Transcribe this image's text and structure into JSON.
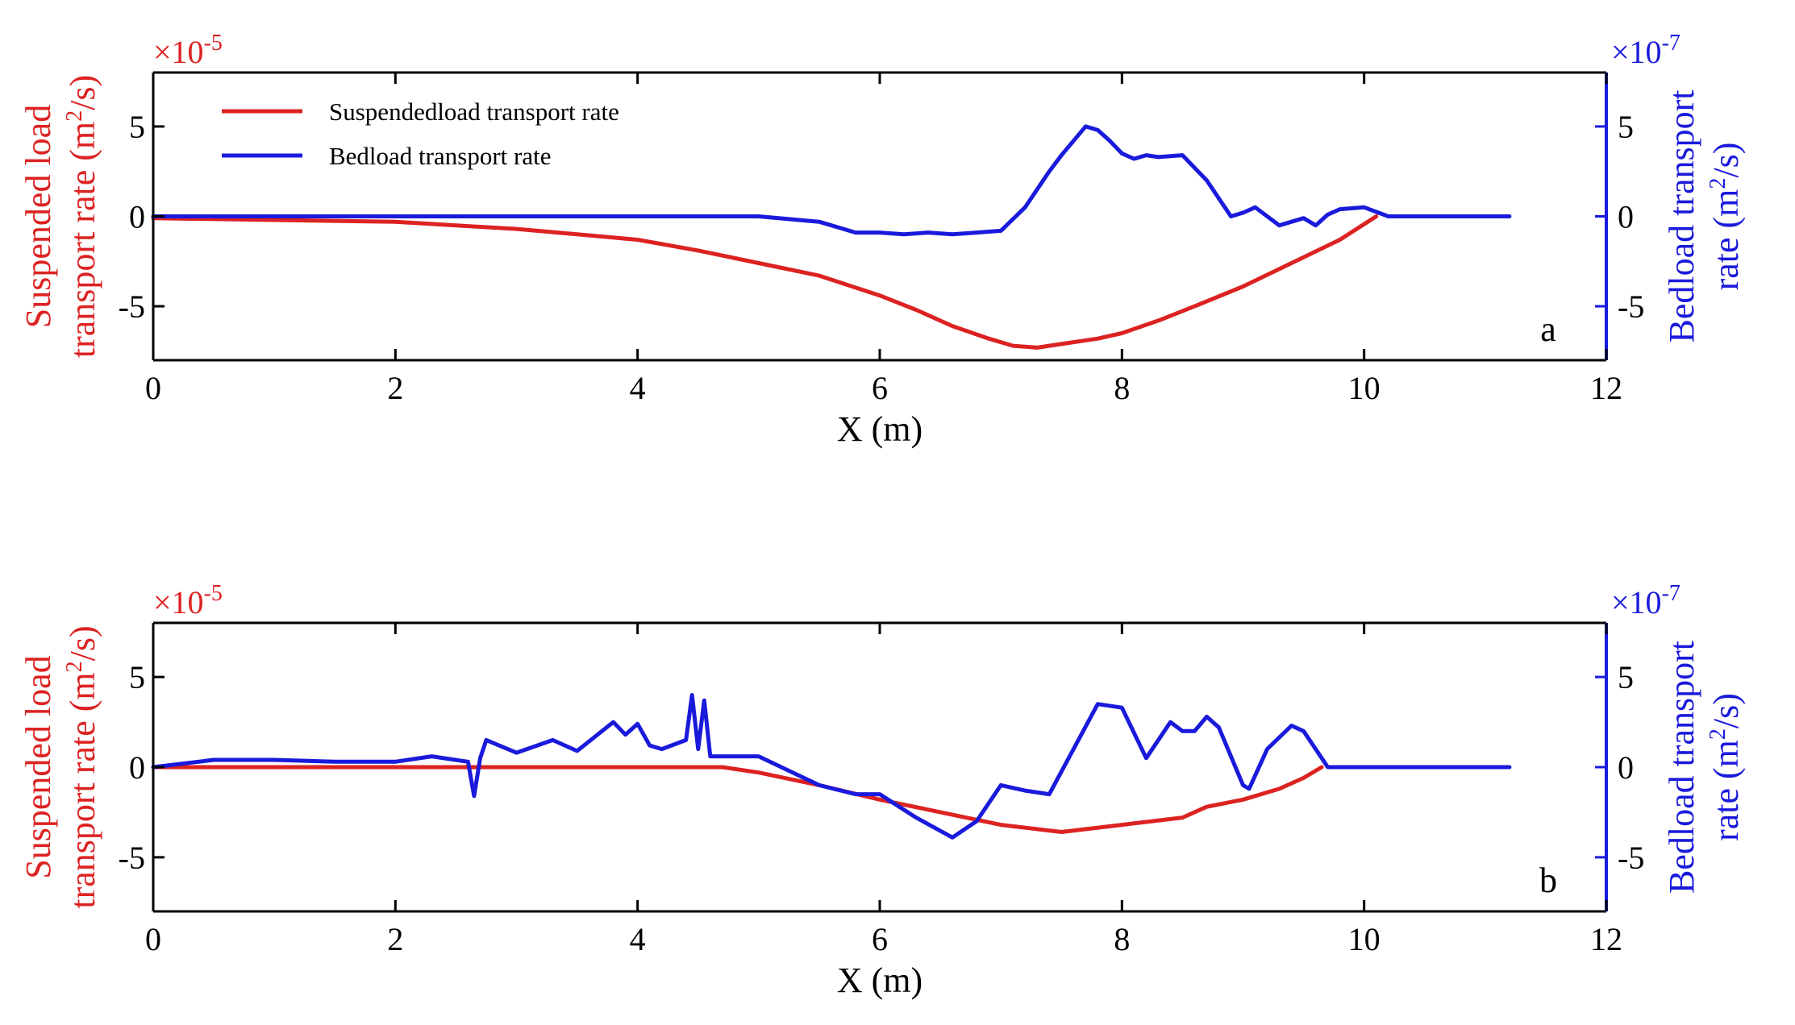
{
  "chart_data": [
    {
      "type": "line",
      "panel_label": "a",
      "xlabel": "X (m)",
      "xlim": [
        0,
        12
      ],
      "xticks": [
        0,
        2,
        4,
        6,
        8,
        10,
        12
      ],
      "ylabel_left": [
        "Suspended load",
        "transport rate (m",
        "2",
        "/s)"
      ],
      "ylabel_right": [
        "Bedload transport",
        "rate (m",
        "2",
        "/s)"
      ],
      "left_exponent": {
        "base": "×10",
        "power": "-5"
      },
      "right_exponent": {
        "base": "×10",
        "power": "-7"
      },
      "ylim_left": [
        -8,
        8
      ],
      "ylim_right": [
        -8,
        8
      ],
      "yticks_left": [
        -5,
        0,
        5
      ],
      "yticks_right": [
        -5,
        0,
        5
      ],
      "grid": false,
      "legend": {
        "placement": "top-left",
        "entries": [
          {
            "name": "Suspendedload transport rate",
            "color": "#dd2222"
          },
          {
            "name": "Bedload transport rate",
            "color": "#1a1adc"
          }
        ]
      },
      "series": [
        {
          "name": "Suspendedload transport rate",
          "axis": "left",
          "color": "#dd2222",
          "x": [
            0,
            1,
            2,
            2.5,
            3,
            3.5,
            4,
            4.5,
            5,
            5.5,
            6,
            6.3,
            6.6,
            6.9,
            7.1,
            7.3,
            7.5,
            7.8,
            8,
            8.3,
            8.6,
            9,
            9.4,
            9.8,
            10.1
          ],
          "y": [
            -0.1,
            -0.2,
            -0.3,
            -0.5,
            -0.7,
            -1.0,
            -1.3,
            -1.9,
            -2.6,
            -3.3,
            -4.4,
            -5.2,
            -6.1,
            -6.8,
            -7.2,
            -7.3,
            -7.1,
            -6.8,
            -6.5,
            -5.8,
            -5.0,
            -3.9,
            -2.6,
            -1.3,
            0
          ]
        },
        {
          "name": "Bedload transport rate",
          "axis": "right",
          "color": "#1a1adc",
          "x": [
            0,
            1,
            2,
            3,
            4,
            5,
            5.5,
            5.8,
            6,
            6.2,
            6.4,
            6.6,
            6.8,
            7.0,
            7.2,
            7.4,
            7.5,
            7.6,
            7.7,
            7.8,
            7.9,
            8.0,
            8.1,
            8.2,
            8.3,
            8.5,
            8.7,
            8.9,
            9.0,
            9.1,
            9.2,
            9.3,
            9.4,
            9.5,
            9.6,
            9.7,
            9.8,
            10.0,
            10.2,
            11.2
          ],
          "y": [
            0,
            0,
            0,
            0,
            0,
            0,
            -0.3,
            -0.9,
            -0.9,
            -1.0,
            -0.9,
            -1.0,
            -0.9,
            -0.8,
            0.5,
            2.5,
            3.4,
            4.2,
            5.0,
            4.8,
            4.2,
            3.5,
            3.2,
            3.4,
            3.3,
            3.4,
            2.0,
            0.0,
            0.2,
            0.5,
            0.0,
            -0.5,
            -0.3,
            -0.1,
            -0.5,
            0.1,
            0.4,
            0.5,
            0,
            0
          ]
        }
      ]
    },
    {
      "type": "line",
      "panel_label": "b",
      "xlabel": "X (m)",
      "xlim": [
        0,
        12
      ],
      "xticks": [
        0,
        2,
        4,
        6,
        8,
        10,
        12
      ],
      "ylabel_left": [
        "Suspended load",
        "transport rate (m",
        "2",
        "/s)"
      ],
      "ylabel_right": [
        "Bedload transport",
        "rate (m",
        "2",
        "/s)"
      ],
      "left_exponent": {
        "base": "×10",
        "power": "-5"
      },
      "right_exponent": {
        "base": "×10",
        "power": "-7"
      },
      "ylim_left": [
        -8,
        8
      ],
      "ylim_right": [
        -8,
        8
      ],
      "yticks_left": [
        -5,
        0,
        5
      ],
      "yticks_right": [
        -5,
        0,
        5
      ],
      "grid": false,
      "series": [
        {
          "name": "Suspendedload transport rate",
          "axis": "left",
          "color": "#dd2222",
          "x": [
            0,
            1,
            2,
            3,
            4,
            4.5,
            4.7,
            5.0,
            5.5,
            6.0,
            6.5,
            7.0,
            7.5,
            8.0,
            8.5,
            8.7,
            9.0,
            9.3,
            9.5,
            9.65
          ],
          "y": [
            0,
            0,
            0,
            0,
            0,
            0,
            0,
            -0.3,
            -1.0,
            -1.8,
            -2.5,
            -3.2,
            -3.6,
            -3.2,
            -2.8,
            -2.2,
            -1.8,
            -1.2,
            -0.6,
            0
          ]
        },
        {
          "name": "Bedload transport rate",
          "axis": "right",
          "color": "#1a1adc",
          "x": [
            0,
            0.5,
            1.0,
            1.5,
            2.0,
            2.3,
            2.6,
            2.65,
            2.7,
            2.75,
            3.0,
            3.3,
            3.5,
            3.8,
            3.9,
            4.0,
            4.1,
            4.2,
            4.4,
            4.45,
            4.5,
            4.55,
            4.6,
            5.0,
            5.5,
            5.8,
            6.0,
            6.3,
            6.6,
            6.8,
            7.0,
            7.2,
            7.4,
            7.6,
            7.8,
            8.0,
            8.2,
            8.4,
            8.5,
            8.6,
            8.7,
            8.8,
            9.0,
            9.05,
            9.2,
            9.4,
            9.5,
            9.7,
            10.0,
            11.2
          ],
          "y": [
            0,
            0.4,
            0.4,
            0.3,
            0.3,
            0.6,
            0.3,
            -1.6,
            0.5,
            1.5,
            0.8,
            1.5,
            0.9,
            2.5,
            1.8,
            2.4,
            1.2,
            1.0,
            1.5,
            4.0,
            1.0,
            3.7,
            0.6,
            0.6,
            -1.0,
            -1.5,
            -1.5,
            -2.8,
            -3.9,
            -3.0,
            -1.0,
            -1.3,
            -1.5,
            1.0,
            3.5,
            3.3,
            0.5,
            2.5,
            2.0,
            2.0,
            2.8,
            2.2,
            -1.0,
            -1.2,
            1.0,
            2.3,
            2.0,
            0,
            0,
            0
          ]
        }
      ]
    }
  ]
}
